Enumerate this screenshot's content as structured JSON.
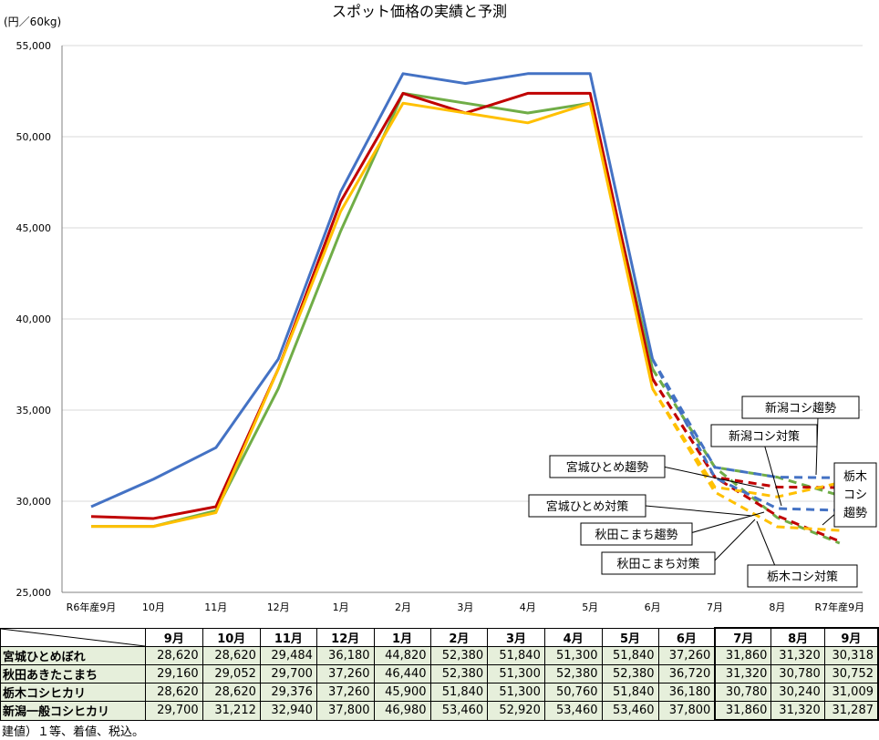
{
  "chart_data": {
    "type": "line",
    "title": "スポット価格の実績と予測",
    "y_unit_label": "(円／60kg)",
    "ylim": [
      25000,
      55000
    ],
    "yticks": [
      "25,000",
      "30,000",
      "35,000",
      "40,000",
      "45,000",
      "50,000",
      "55,000"
    ],
    "categories": [
      "R6年産9月",
      "10月",
      "11月",
      "12月",
      "1月",
      "2月",
      "3月",
      "4月",
      "5月",
      "6月",
      "7月",
      "8月",
      "R7年産9月"
    ],
    "grid": "horizontal",
    "series": [
      {
        "name": "宮城ひとめぼれ",
        "color": "#70ad47",
        "values": [
          28620,
          28620,
          29484,
          36180,
          44820,
          52380,
          51840,
          51300,
          51840,
          37260,
          31860,
          31320,
          30318
        ]
      },
      {
        "name": "秋田あきたこまち",
        "color": "#c00000",
        "values": [
          29160,
          29052,
          29700,
          37260,
          46440,
          52380,
          51300,
          52380,
          52380,
          36720,
          31320,
          30780,
          30752
        ]
      },
      {
        "name": "栃木コシヒカリ",
        "color": "#ffc000",
        "values": [
          28620,
          28620,
          29376,
          37260,
          45900,
          51840,
          51300,
          50760,
          51840,
          36180,
          30780,
          30240,
          31009
        ]
      },
      {
        "name": "新潟一般コシヒカリ",
        "color": "#4472c4",
        "values": [
          29700,
          31212,
          32940,
          37800,
          46980,
          53460,
          52920,
          53460,
          53460,
          37800,
          31860,
          31320,
          31287
        ]
      }
    ],
    "forecasts": [
      {
        "label": "宮城ひとめ趨勢",
        "series": 0,
        "values": [
          37260,
          31860,
          31320,
          30318
        ]
      },
      {
        "label": "宮城ひとめ対策",
        "series": 0,
        "values": [
          37260,
          31860,
          29100,
          27700
        ]
      },
      {
        "label": "秋田こまち趨勢",
        "series": 1,
        "values": [
          36720,
          31320,
          30780,
          30752
        ]
      },
      {
        "label": "秋田こまち対策",
        "series": 1,
        "values": [
          36720,
          31320,
          29200,
          27800
        ]
      },
      {
        "label": "栃木コシ趨勢",
        "series": 2,
        "values": [
          36180,
          30780,
          30240,
          31009
        ]
      },
      {
        "label": "栃木コシ対策",
        "series": 2,
        "values": [
          36180,
          30500,
          28600,
          28400
        ]
      },
      {
        "label": "新潟コシ趨勢",
        "series": 3,
        "values": [
          37800,
          31860,
          31320,
          31287
        ]
      },
      {
        "label": "新潟コシ対策",
        "series": 3,
        "values": [
          37800,
          31300,
          29600,
          29500
        ]
      }
    ],
    "callouts": [
      "新潟コシ趨勢",
      "新潟コシ対策",
      "宮城ひとめ趨勢",
      "宮城ひとめ対策",
      "秋田こまち趨勢",
      "秋田こまち対策",
      "栃木コシ対策"
    ],
    "callout_tochigi_lines": [
      "栃木",
      "コシ",
      "趨勢"
    ]
  },
  "table": {
    "months": [
      "9月",
      "10月",
      "11月",
      "12月",
      "1月",
      "2月",
      "3月",
      "4月",
      "5月",
      "6月",
      "7月",
      "8月",
      "9月"
    ],
    "rows": [
      {
        "name": "宮城ひとめぼれ",
        "values": [
          "28,620",
          "28,620",
          "29,484",
          "36,180",
          "44,820",
          "52,380",
          "51,840",
          "51,300",
          "51,840",
          "37,260",
          "31,860",
          "31,320",
          "30,318"
        ]
      },
      {
        "name": "秋田あきたこまち",
        "values": [
          "29,160",
          "29,052",
          "29,700",
          "37,260",
          "46,440",
          "52,380",
          "51,300",
          "52,380",
          "52,380",
          "36,720",
          "31,320",
          "30,780",
          "30,752"
        ]
      },
      {
        "name": "栃木コシヒカリ",
        "values": [
          "28,620",
          "28,620",
          "29,376",
          "37,260",
          "45,900",
          "51,840",
          "51,300",
          "50,760",
          "51,840",
          "36,180",
          "30,780",
          "30,240",
          "31,009"
        ]
      },
      {
        "name": "新潟一般コシヒカリ",
        "values": [
          "29,700",
          "31,212",
          "32,940",
          "37,800",
          "46,980",
          "53,460",
          "52,920",
          "53,460",
          "53,460",
          "37,800",
          "31,860",
          "31,320",
          "31,287"
        ]
      }
    ]
  },
  "footnote": "建値）１等、着値、税込。"
}
